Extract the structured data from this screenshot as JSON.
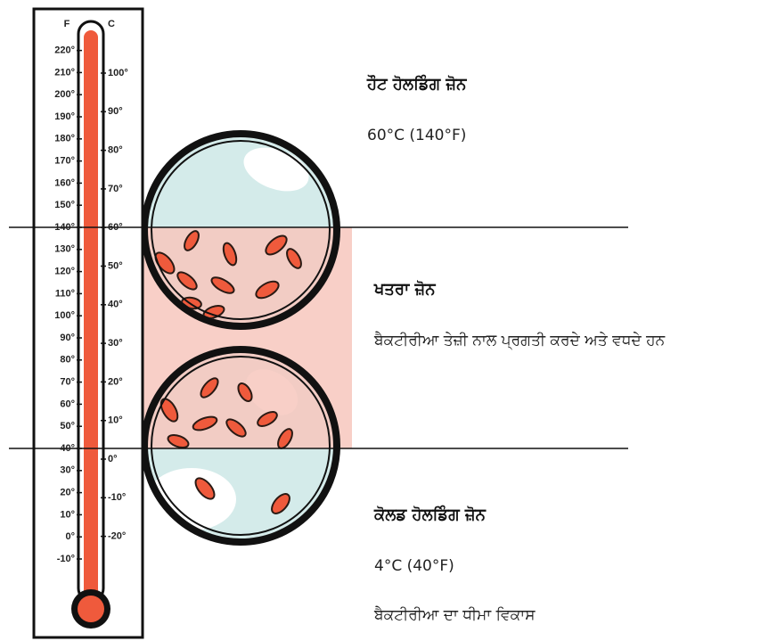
{
  "thermometer": {
    "f_header": "F",
    "c_header": "C",
    "f_ticks": [
      "220°",
      "210°",
      "200°",
      "190°",
      "180°",
      "170°",
      "160°",
      "150°",
      "140°",
      "130°",
      "120°",
      "110°",
      "100°",
      "90°",
      "80°",
      "70°",
      "60°",
      "50°",
      "40°",
      "30°",
      "20°",
      "10°",
      "0°",
      "-10°"
    ],
    "c_ticks": [
      "100°",
      "90°",
      "80°",
      "70°",
      "60°",
      "50°",
      "40°",
      "30°",
      "20°",
      "10°",
      "0°",
      "-10°",
      "-20°"
    ]
  },
  "zones": [
    {
      "title": "ਹੌਟ ਹੋਲਡਿੰਗ ਜ਼ੋਨ",
      "lines": [
        "60°C (140°F)"
      ]
    },
    {
      "title": "ਖਤਰਾ ਜ਼ੋਨ",
      "lines": [
        "ਬੈਕਟੀਰੀਆ ਤੇਜ਼ੀ ਨਾਲ ਪ੍ਰਗਤੀ ਕਰਦੇ ਅਤੇ ਵਧਦੇ ਹਨ"
      ]
    },
    {
      "title": "ਕੋਲਡ ਹੋਲਡਿੰਗ ਜ਼ੋਨ",
      "lines": [
        "4°C (40°F)",
        "ਬੈਕਟੀਰੀਆ ਦਾ ਧੀਮਾ ਵਿਕਾਸ"
      ]
    }
  ]
}
